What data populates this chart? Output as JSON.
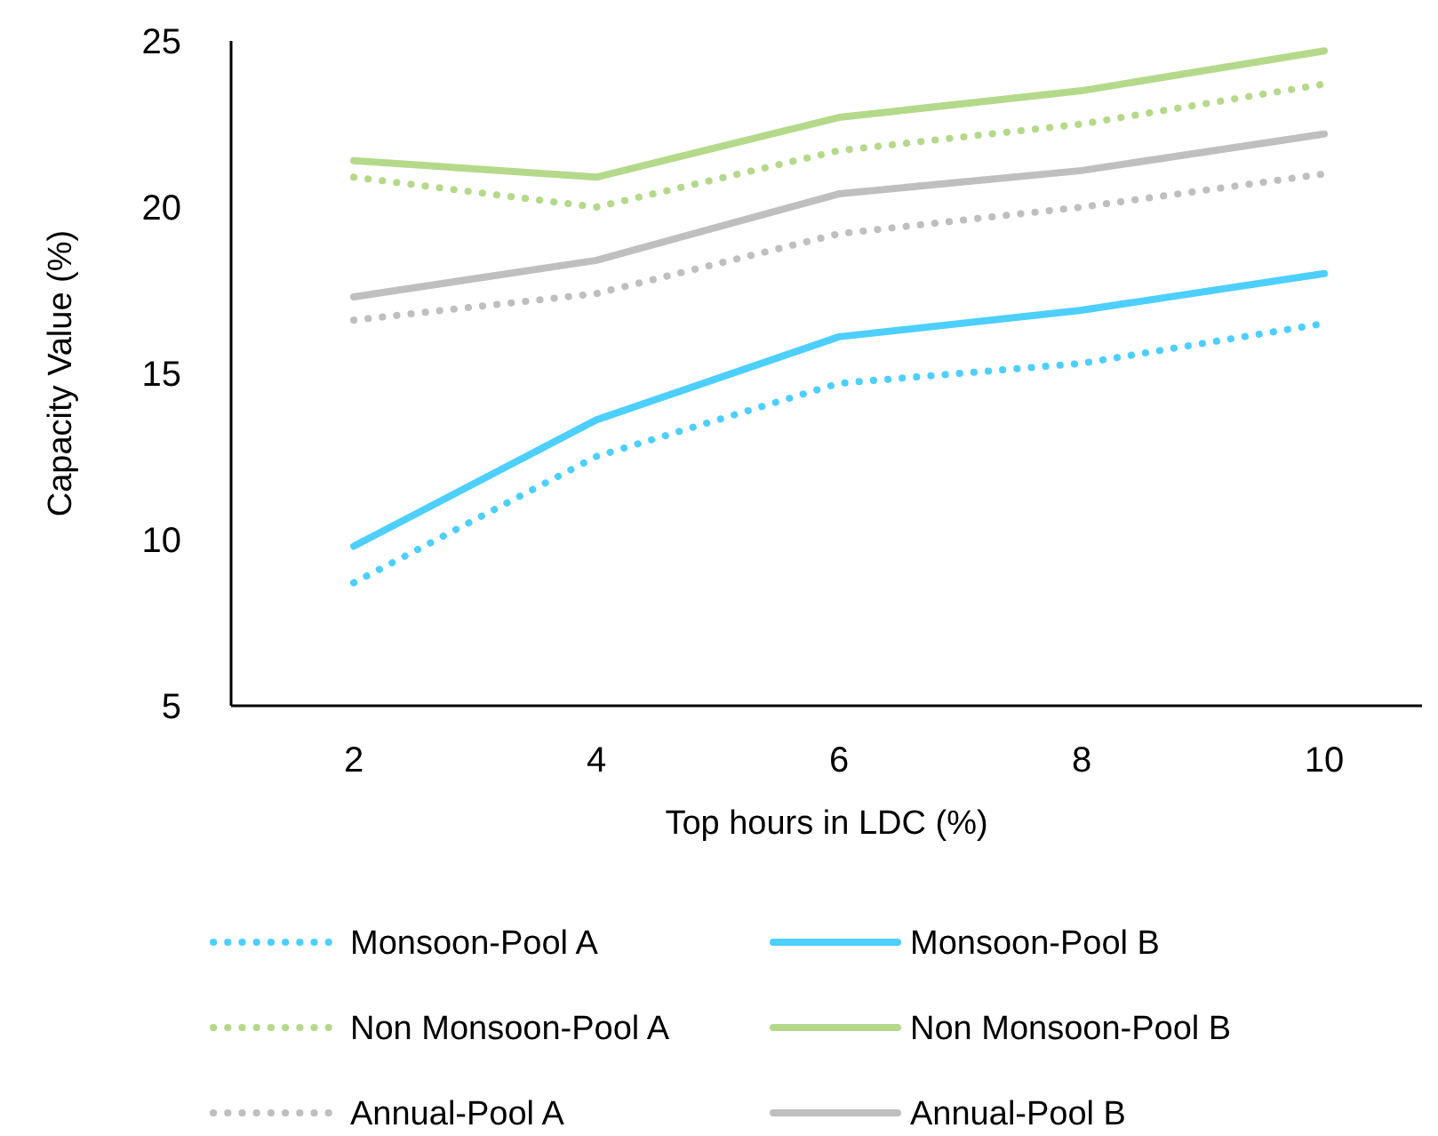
{
  "chart_data": {
    "type": "line",
    "xlabel": "Top hours in LDC (%)",
    "ylabel": "Capacity Value (%)",
    "categories": [
      "2",
      "4",
      "6",
      "8",
      "10"
    ],
    "ylim": [
      5,
      25
    ],
    "yticks": [
      5,
      10,
      15,
      20,
      25
    ],
    "grid": false,
    "legend": "bottom",
    "marker": "none",
    "series": [
      {
        "name": "Monsoon-Pool A",
        "color": "#4dcfff",
        "line_style": "dotted",
        "values": [
          8.7,
          12.5,
          14.7,
          15.3,
          16.5
        ]
      },
      {
        "name": "Monsoon-Pool B",
        "color": "#4dcfff",
        "line_style": "solid",
        "values": [
          9.8,
          13.6,
          16.1,
          16.9,
          18.0
        ]
      },
      {
        "name": "Non Monsoon-Pool A",
        "color": "#b5d98a",
        "line_style": "dotted",
        "values": [
          20.9,
          20.0,
          21.7,
          22.5,
          23.7
        ]
      },
      {
        "name": "Non Monsoon-Pool B",
        "color": "#b5d98a",
        "line_style": "solid",
        "values": [
          21.4,
          20.9,
          22.7,
          23.5,
          24.7
        ]
      },
      {
        "name": "Annual-Pool A",
        "color": "#bfbfbf",
        "line_style": "dotted",
        "values": [
          16.6,
          17.4,
          19.2,
          20.0,
          21.0
        ]
      },
      {
        "name": "Annual-Pool B",
        "color": "#bfbfbf",
        "line_style": "solid",
        "values": [
          17.3,
          18.4,
          20.4,
          21.1,
          22.2
        ]
      }
    ]
  }
}
